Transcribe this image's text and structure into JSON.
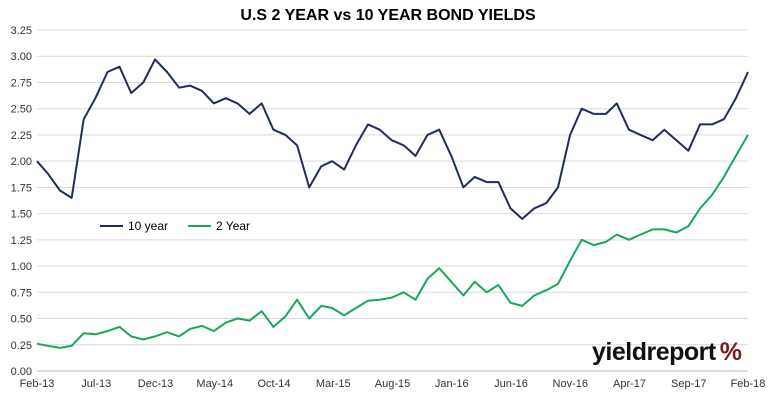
{
  "logo": {
    "name": "yieldreport",
    "symbol": "%"
  },
  "chart_data": {
    "type": "line",
    "title": "U.S 2 YEAR vs 10 YEAR BOND YIELDS",
    "xlabel": "",
    "ylabel": "",
    "ylim": [
      0,
      3.25
    ],
    "y_ticks": [
      "0.00",
      "0.25",
      "0.50",
      "0.75",
      "1.00",
      "1.25",
      "1.50",
      "1.75",
      "2.00",
      "2.25",
      "2.50",
      "2.75",
      "3.00",
      "3.25"
    ],
    "x_ticks": [
      "Feb-13",
      "Jul-13",
      "Dec-13",
      "May-14",
      "Oct-14",
      "Mar-15",
      "Aug-15",
      "Jan-16",
      "Jun-16",
      "Nov-16",
      "Apr-17",
      "Sep-17",
      "Feb-18"
    ],
    "grid": true,
    "legend": "left-middle",
    "series": [
      {
        "name": "10 year",
        "color": "#1f2d5c",
        "x": [
          "2013-02",
          "2013-03",
          "2013-04",
          "2013-05",
          "2013-06",
          "2013-07",
          "2013-08",
          "2013-09",
          "2013-10",
          "2013-11",
          "2013-12",
          "2014-01",
          "2014-02",
          "2014-03",
          "2014-04",
          "2014-05",
          "2014-06",
          "2014-07",
          "2014-08",
          "2014-09",
          "2014-10",
          "2014-11",
          "2014-12",
          "2015-01",
          "2015-02",
          "2015-03",
          "2015-04",
          "2015-05",
          "2015-06",
          "2015-07",
          "2015-08",
          "2015-09",
          "2015-10",
          "2015-11",
          "2015-12",
          "2016-01",
          "2016-02",
          "2016-03",
          "2016-04",
          "2016-05",
          "2016-06",
          "2016-07",
          "2016-08",
          "2016-09",
          "2016-10",
          "2016-11",
          "2016-12",
          "2017-01",
          "2017-02",
          "2017-03",
          "2017-04",
          "2017-05",
          "2017-06",
          "2017-07",
          "2017-08",
          "2017-09",
          "2017-10",
          "2017-11",
          "2017-12",
          "2018-01",
          "2018-02"
        ],
        "values": [
          2.0,
          1.88,
          1.72,
          1.65,
          2.4,
          2.6,
          2.85,
          2.9,
          2.65,
          2.75,
          2.97,
          2.85,
          2.7,
          2.72,
          2.67,
          2.55,
          2.6,
          2.55,
          2.45,
          2.55,
          2.3,
          2.25,
          2.15,
          1.75,
          1.95,
          2.0,
          1.92,
          2.15,
          2.35,
          2.3,
          2.2,
          2.15,
          2.05,
          2.25,
          2.3,
          2.05,
          1.75,
          1.85,
          1.8,
          1.8,
          1.55,
          1.45,
          1.55,
          1.6,
          1.75,
          2.25,
          2.5,
          2.45,
          2.45,
          2.55,
          2.3,
          2.25,
          2.2,
          2.3,
          2.2,
          2.1,
          2.35,
          2.35,
          2.4,
          2.6,
          2.85
        ]
      },
      {
        "name": "2 Year",
        "color": "#19a85b",
        "x": [
          "2013-02",
          "2013-03",
          "2013-04",
          "2013-05",
          "2013-06",
          "2013-07",
          "2013-08",
          "2013-09",
          "2013-10",
          "2013-11",
          "2013-12",
          "2014-01",
          "2014-02",
          "2014-03",
          "2014-04",
          "2014-05",
          "2014-06",
          "2014-07",
          "2014-08",
          "2014-09",
          "2014-10",
          "2014-11",
          "2014-12",
          "2015-01",
          "2015-02",
          "2015-03",
          "2015-04",
          "2015-05",
          "2015-06",
          "2015-07",
          "2015-08",
          "2015-09",
          "2015-10",
          "2015-11",
          "2015-12",
          "2016-01",
          "2016-02",
          "2016-03",
          "2016-04",
          "2016-05",
          "2016-06",
          "2016-07",
          "2016-08",
          "2016-09",
          "2016-10",
          "2016-11",
          "2016-12",
          "2017-01",
          "2017-02",
          "2017-03",
          "2017-04",
          "2017-05",
          "2017-06",
          "2017-07",
          "2017-08",
          "2017-09",
          "2017-10",
          "2017-11",
          "2017-12",
          "2018-01",
          "2018-02"
        ],
        "values": [
          0.26,
          0.24,
          0.22,
          0.24,
          0.36,
          0.35,
          0.38,
          0.42,
          0.33,
          0.3,
          0.33,
          0.37,
          0.33,
          0.4,
          0.43,
          0.38,
          0.46,
          0.5,
          0.48,
          0.57,
          0.42,
          0.52,
          0.68,
          0.5,
          0.62,
          0.6,
          0.53,
          0.6,
          0.67,
          0.68,
          0.7,
          0.75,
          0.68,
          0.88,
          0.98,
          0.85,
          0.72,
          0.85,
          0.75,
          0.82,
          0.65,
          0.62,
          0.72,
          0.77,
          0.83,
          1.05,
          1.25,
          1.2,
          1.23,
          1.3,
          1.25,
          1.3,
          1.35,
          1.35,
          1.32,
          1.38,
          1.55,
          1.68,
          1.85,
          2.05,
          2.25
        ]
      }
    ]
  }
}
